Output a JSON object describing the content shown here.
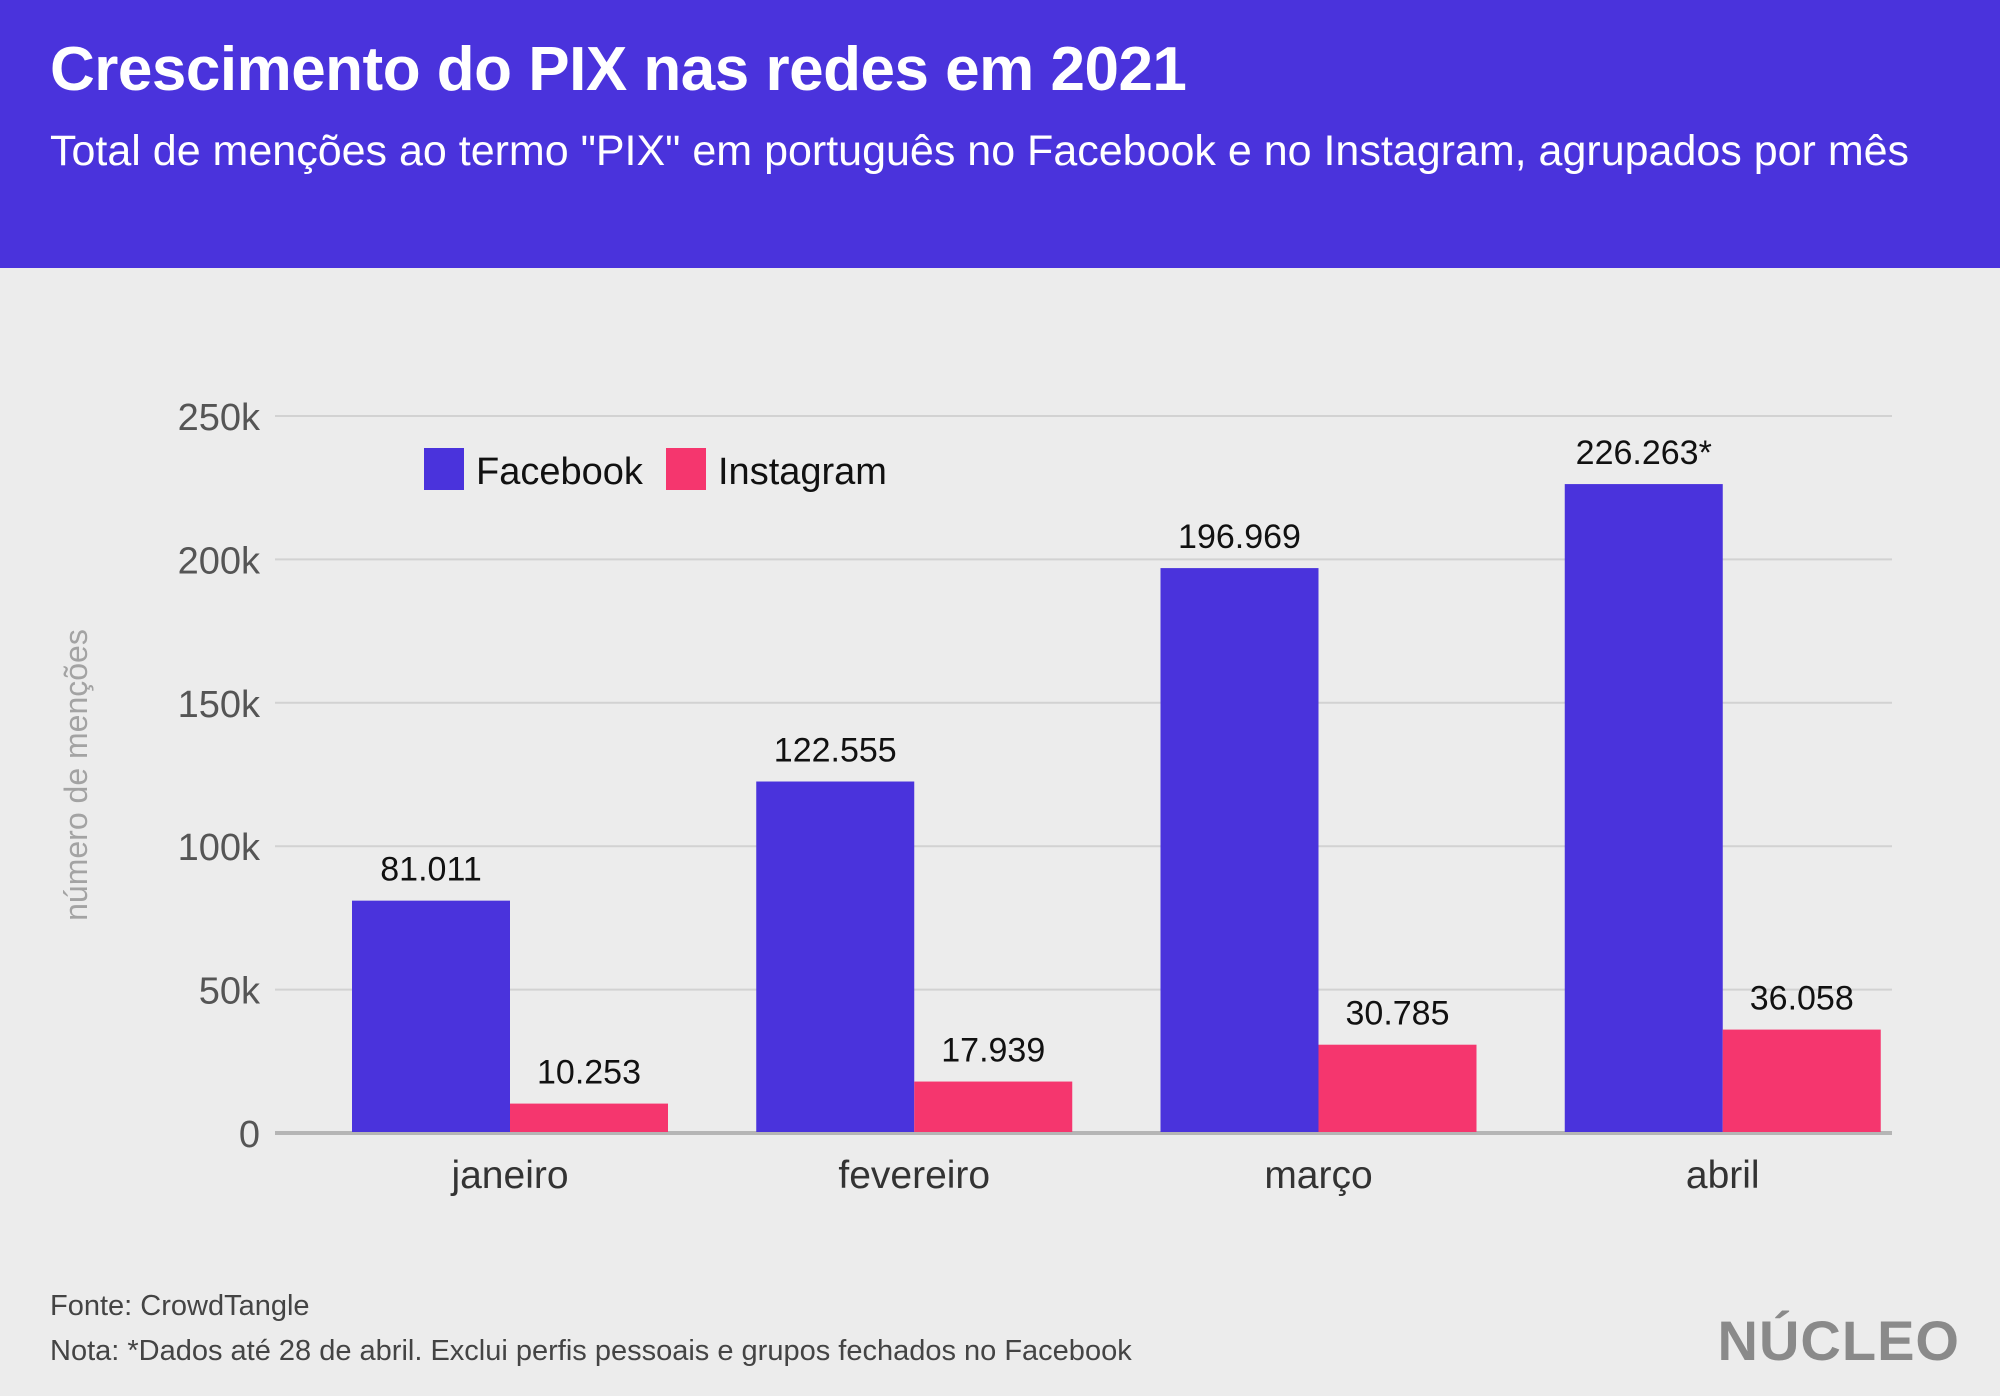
{
  "header": {
    "title": "Crescimento do PIX nas redes em 2021",
    "subtitle": "Total de menções ao termo \"PIX\" em português no Facebook e no Instagram, agrupados por mês"
  },
  "chart_data": {
    "type": "bar",
    "title": "Crescimento do PIX nas redes em 2021",
    "subtitle": "Total de menções ao termo \"PIX\" em português no Facebook e no Instagram, agrupados por mês",
    "xlabel": "",
    "ylabel": "número de menções",
    "categories": [
      "janeiro",
      "fevereiro",
      "março",
      "abril"
    ],
    "series": [
      {
        "name": "Facebook",
        "color": "#4a33dc",
        "values": [
          81011,
          122555,
          196969,
          226263
        ],
        "labels": [
          "81.011",
          "122.555",
          "196.969",
          "226.263*"
        ]
      },
      {
        "name": "Instagram",
        "color": "#f5366e",
        "values": [
          10253,
          17939,
          30785,
          36058
        ],
        "labels": [
          "10.253",
          "17.939",
          "30.785",
          "36.058"
        ]
      }
    ],
    "ylim": [
      0,
      250000
    ],
    "yticks": [
      0,
      50000,
      100000,
      150000,
      200000,
      250000
    ],
    "ytick_labels": [
      "0",
      "50k",
      "100k",
      "150k",
      "200k",
      "250k"
    ],
    "grid": true,
    "legend": "top-left"
  },
  "footer": {
    "source": "Fonte: CrowdTangle",
    "note": "Nota: *Dados até 28 de abril. Exclui perfis pessoais e grupos fechados no Facebook",
    "logo": "NÚCLEO"
  },
  "colors": {
    "header_bg": "#4a33dc",
    "background": "#ececec",
    "grid": "#d2d2d2",
    "axis_text": "#555555"
  }
}
